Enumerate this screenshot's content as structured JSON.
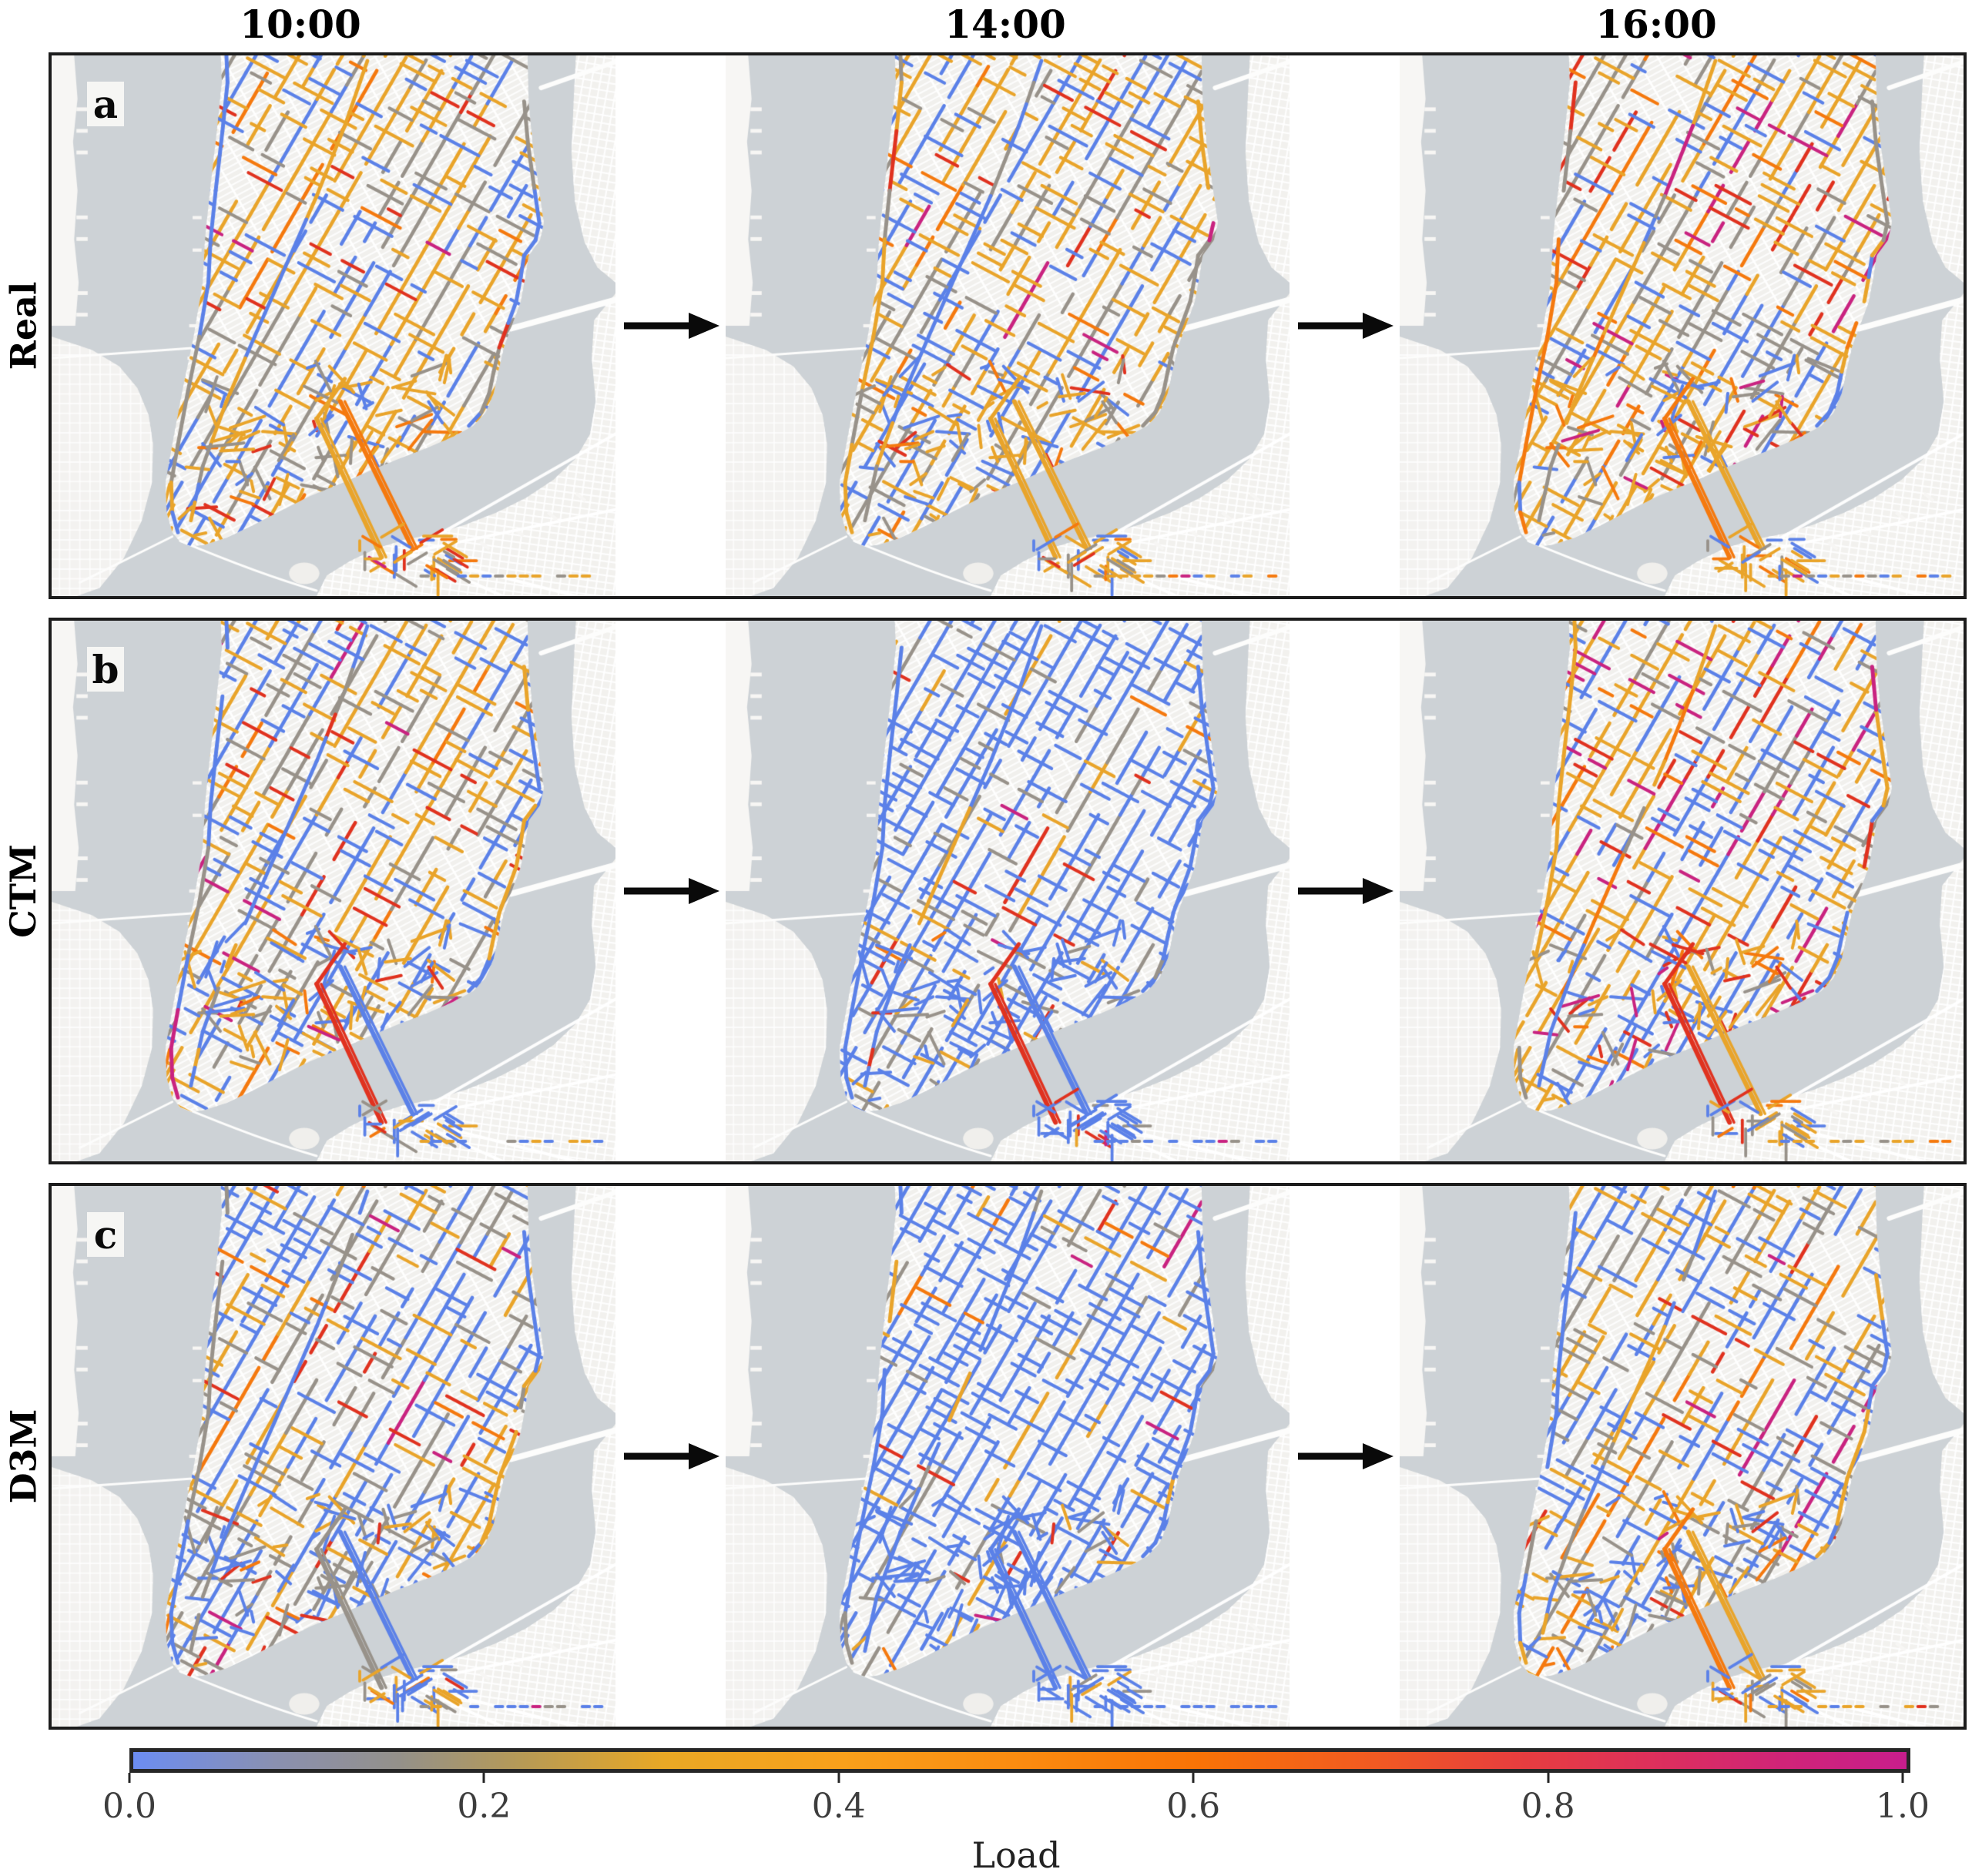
{
  "figure": {
    "background": "#ffffff",
    "kind": "3x3 road-network load map comparison"
  },
  "columns": [
    {
      "label": "10:00"
    },
    {
      "label": "14:00"
    },
    {
      "label": "16:00"
    }
  ],
  "rows": [
    {
      "label": "Real",
      "letter": "a"
    },
    {
      "label": "CTM",
      "letter": "b"
    },
    {
      "label": "D3M",
      "letter": "c"
    }
  ],
  "colorbar": {
    "title": "Load",
    "ticks": [
      "0.0",
      "0.2",
      "0.4",
      "0.6",
      "0.8",
      "1.0"
    ],
    "min": 0.0,
    "max": 1.0,
    "stops": [
      [
        0,
        "#6c8df2"
      ],
      [
        0.08,
        "#8a90b0"
      ],
      [
        0.15,
        "#94918a"
      ],
      [
        0.22,
        "#b79a55"
      ],
      [
        0.3,
        "#e9a825"
      ],
      [
        0.4,
        "#f9a01b"
      ],
      [
        0.5,
        "#fb8b10"
      ],
      [
        0.6,
        "#f97306"
      ],
      [
        0.7,
        "#f15a22"
      ],
      [
        0.78,
        "#e73e3e"
      ],
      [
        0.86,
        "#dd2f5d"
      ],
      [
        0.93,
        "#d02478"
      ],
      [
        1,
        "#c81e8c"
      ]
    ]
  },
  "map_colors": {
    "water": "#cdd2d6",
    "land": "#f1f0ed",
    "land_alt": "#f2f1ee",
    "street": "#ffffff"
  },
  "palette": {
    "blue": "#5b81e8",
    "gray": "#98928a",
    "amber": "#e9a42a",
    "orange": "#f5790e",
    "red": "#e0321f",
    "magenta": "#c92380"
  },
  "panels": [
    {
      "row": "Real",
      "time": "10:00",
      "seed": 11,
      "weights": {
        "blue": 0.17,
        "gray": 0.22,
        "amber": 0.33,
        "orange": 0.06,
        "red": 0.04,
        "magenta": 0.01
      },
      "bridges": [
        "amber",
        "orange"
      ]
    },
    {
      "row": "Real",
      "time": "14:00",
      "seed": 23,
      "weights": {
        "blue": 0.21,
        "gray": 0.18,
        "amber": 0.33,
        "orange": 0.05,
        "red": 0.04,
        "magenta": 0.01
      },
      "bridges": [
        "amber",
        "amber"
      ]
    },
    {
      "row": "Real",
      "time": "16:00",
      "seed": 37,
      "weights": {
        "blue": 0.14,
        "gray": 0.17,
        "amber": 0.36,
        "orange": 0.09,
        "red": 0.05,
        "magenta": 0.02
      },
      "bridges": [
        "orange",
        "amber"
      ]
    },
    {
      "row": "CTM",
      "time": "10:00",
      "seed": 41,
      "weights": {
        "blue": 0.28,
        "gray": 0.16,
        "amber": 0.26,
        "orange": 0.04,
        "red": 0.05,
        "magenta": 0.02
      },
      "bridges": [
        "red",
        "blue"
      ]
    },
    {
      "row": "CTM",
      "time": "14:00",
      "seed": 53,
      "weights": {
        "blue": 0.57,
        "gray": 0.09,
        "amber": 0.06,
        "orange": 0.01,
        "red": 0.025,
        "magenta": 0.01
      },
      "bridges": [
        "red",
        "blue"
      ]
    },
    {
      "row": "CTM",
      "time": "16:00",
      "seed": 67,
      "weights": {
        "blue": 0.26,
        "gray": 0.13,
        "amber": 0.27,
        "orange": 0.05,
        "red": 0.07,
        "magenta": 0.035
      },
      "bridges": [
        "red",
        "amber"
      ]
    },
    {
      "row": "D3M",
      "time": "10:00",
      "seed": 71,
      "weights": {
        "blue": 0.33,
        "gray": 0.2,
        "amber": 0.17,
        "orange": 0.03,
        "red": 0.04,
        "magenta": 0.02
      },
      "bridges": [
        "gray",
        "blue"
      ]
    },
    {
      "row": "D3M",
      "time": "14:00",
      "seed": 83,
      "weights": {
        "blue": 0.6,
        "gray": 0.08,
        "amber": 0.05,
        "orange": 0.01,
        "red": 0.02,
        "magenta": 0.01
      },
      "bridges": [
        "blue",
        "blue"
      ]
    },
    {
      "row": "D3M",
      "time": "16:00",
      "seed": 97,
      "weights": {
        "blue": 0.3,
        "gray": 0.17,
        "amber": 0.22,
        "orange": 0.04,
        "red": 0.05,
        "magenta": 0.025
      },
      "bridges": [
        "orange",
        "amber"
      ]
    }
  ],
  "chart_data": {
    "type": "heatmap",
    "title": "",
    "colorbar_label": "Load",
    "colorbar_range": [
      0.0,
      1.0
    ],
    "colorbar_ticks": [
      0.0,
      0.2,
      0.4,
      0.6,
      0.8,
      1.0
    ],
    "colormap": "blue (0.0) -> gray (0.15) -> amber (0.3) -> orange (0.6) -> red (0.8) -> magenta (1.0)",
    "columns": [
      "10:00",
      "14:00",
      "16:00"
    ],
    "rows": [
      "Real",
      "CTM",
      "D3M"
    ],
    "panel_letters": [
      "a",
      "b",
      "c"
    ],
    "panels": [
      {
        "row": "Real",
        "time": "10:00",
        "dominant_load": "mixed medium load, mostly amber/gray with blue"
      },
      {
        "row": "Real",
        "time": "14:00",
        "dominant_load": "mixed medium load, amber with blue"
      },
      {
        "row": "Real",
        "time": "16:00",
        "dominant_load": "higher load, amber/orange with some red"
      },
      {
        "row": "CTM",
        "time": "10:00",
        "dominant_load": "mixed amber and blue"
      },
      {
        "row": "CTM",
        "time": "14:00",
        "dominant_load": "predominantly low load (blue)"
      },
      {
        "row": "CTM",
        "time": "16:00",
        "dominant_load": "mixed amber/blue with red and magenta spots"
      },
      {
        "row": "D3M",
        "time": "10:00",
        "dominant_load": "blue/gray with scattered amber"
      },
      {
        "row": "D3M",
        "time": "14:00",
        "dominant_load": "predominantly low load (blue)"
      },
      {
        "row": "D3M",
        "time": "16:00",
        "dominant_load": "mixed blue/gray/amber with red spots"
      }
    ]
  }
}
